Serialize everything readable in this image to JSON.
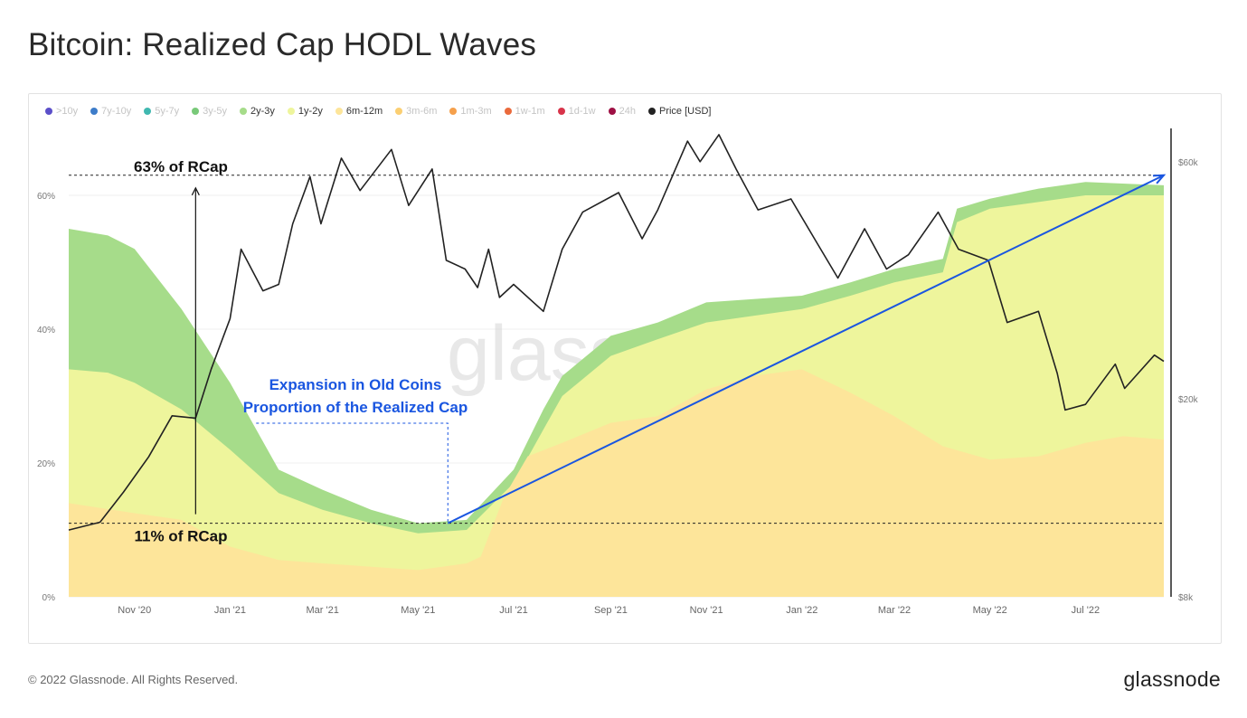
{
  "page": {
    "title": "Bitcoin: Realized Cap HODL Waves",
    "copyright": "© 2022 Glassnode. All Rights Reserved.",
    "brand": "glassnode",
    "watermark": "glassnode"
  },
  "chart_data": {
    "type": "area",
    "title": "Bitcoin: Realized Cap HODL Waves",
    "x_start": "2020-09-20",
    "x_end": "2022-08-20",
    "x_ticks": [
      {
        "label": "Nov '20",
        "date": "2020-11-01"
      },
      {
        "label": "Jan '21",
        "date": "2021-01-01"
      },
      {
        "label": "Mar '21",
        "date": "2021-03-01"
      },
      {
        "label": "May '21",
        "date": "2021-05-01"
      },
      {
        "label": "Jul '21",
        "date": "2021-07-01"
      },
      {
        "label": "Sep '21",
        "date": "2021-09-01"
      },
      {
        "label": "Nov '21",
        "date": "2021-11-01"
      },
      {
        "label": "Jan '22",
        "date": "2022-01-01"
      },
      {
        "label": "Mar '22",
        "date": "2022-03-01"
      },
      {
        "label": "May '22",
        "date": "2022-05-01"
      },
      {
        "label": "Jul '22",
        "date": "2022-07-01"
      }
    ],
    "y_left": {
      "min": 0,
      "max": 70,
      "ticks": [
        {
          "label": "0%",
          "value": 0
        },
        {
          "label": "20%",
          "value": 20
        },
        {
          "label": "40%",
          "value": 40
        },
        {
          "label": "60%",
          "value": 60
        }
      ]
    },
    "y_right": {
      "scale": "log",
      "min": 8000,
      "max": 70000,
      "ticks": [
        {
          "label": "$8k",
          "value": 8000
        },
        {
          "label": "$20k",
          "value": 20000
        },
        {
          "label": "$60k",
          "value": 60000
        }
      ]
    },
    "grid": true,
    "legend_position": "top-left",
    "legend": [
      {
        "label": ">10y",
        "color": "#5b4fc9",
        "active": false
      },
      {
        "label": "7y-10y",
        "color": "#3d7cc9",
        "active": false
      },
      {
        "label": "5y-7y",
        "color": "#40b8b0",
        "active": false
      },
      {
        "label": "3y-5y",
        "color": "#79c979",
        "active": false
      },
      {
        "label": "2y-3y",
        "color": "#a6dc8a",
        "active": true
      },
      {
        "label": "1y-2y",
        "color": "#eef59c",
        "active": true
      },
      {
        "label": "6m-12m",
        "color": "#fde59a",
        "active": true
      },
      {
        "label": "3m-6m",
        "color": "#fbcf72",
        "active": false
      },
      {
        "label": "1m-3m",
        "color": "#f5a04c",
        "active": false
      },
      {
        "label": "1w-1m",
        "color": "#ea6a3c",
        "active": false
      },
      {
        "label": "1d-1w",
        "color": "#d8344a",
        "active": false
      },
      {
        "label": "24h",
        "color": "#9e1044",
        "active": false
      },
      {
        "label": "Price [USD]",
        "color": "#222222",
        "active": true
      }
    ],
    "series": [
      {
        "name": "6m-12m",
        "color": "#fde59a",
        "points": [
          [
            "2020-09-20",
            14
          ],
          [
            "2020-11-01",
            12.5
          ],
          [
            "2020-12-01",
            11.5
          ],
          [
            "2021-01-01",
            7.5
          ],
          [
            "2021-02-01",
            5.5
          ],
          [
            "2021-03-01",
            5
          ],
          [
            "2021-04-01",
            4.5
          ],
          [
            "2021-05-01",
            4
          ],
          [
            "2021-06-01",
            5
          ],
          [
            "2021-06-10",
            6
          ],
          [
            "2021-06-25",
            15
          ],
          [
            "2021-07-10",
            21
          ],
          [
            "2021-08-01",
            23
          ],
          [
            "2021-09-01",
            26
          ],
          [
            "2021-10-01",
            27
          ],
          [
            "2021-11-01",
            31
          ],
          [
            "2021-12-01",
            33
          ],
          [
            "2022-01-01",
            34
          ],
          [
            "2022-02-01",
            30.5
          ],
          [
            "2022-03-01",
            27
          ],
          [
            "2022-04-01",
            22.5
          ],
          [
            "2022-05-01",
            20.5
          ],
          [
            "2022-06-01",
            21
          ],
          [
            "2022-07-01",
            23
          ],
          [
            "2022-07-25",
            24
          ],
          [
            "2022-08-20",
            23.5
          ]
        ]
      },
      {
        "name": "1y-2y",
        "color": "#eef59c",
        "points": [
          [
            "2020-09-20",
            34
          ],
          [
            "2020-10-15",
            33.5
          ],
          [
            "2020-11-01",
            32
          ],
          [
            "2020-12-01",
            28
          ],
          [
            "2021-01-01",
            22
          ],
          [
            "2021-02-01",
            15.5
          ],
          [
            "2021-03-01",
            13
          ],
          [
            "2021-04-01",
            11
          ],
          [
            "2021-05-01",
            9.5
          ],
          [
            "2021-06-01",
            10
          ],
          [
            "2021-07-01",
            17
          ],
          [
            "2021-07-20",
            25
          ],
          [
            "2021-08-01",
            30
          ],
          [
            "2021-09-01",
            36
          ],
          [
            "2021-10-01",
            38.5
          ],
          [
            "2021-11-01",
            41
          ],
          [
            "2021-12-01",
            42
          ],
          [
            "2022-01-01",
            43
          ],
          [
            "2022-02-01",
            45
          ],
          [
            "2022-03-01",
            47
          ],
          [
            "2022-04-01",
            48.5
          ],
          [
            "2022-04-10",
            56
          ],
          [
            "2022-05-01",
            58
          ],
          [
            "2022-06-01",
            59
          ],
          [
            "2022-07-01",
            60
          ],
          [
            "2022-08-20",
            60
          ]
        ]
      },
      {
        "name": "2y-3y",
        "color": "#a6dc8a",
        "points": [
          [
            "2020-09-20",
            55
          ],
          [
            "2020-10-15",
            54
          ],
          [
            "2020-11-01",
            52
          ],
          [
            "2020-12-01",
            43
          ],
          [
            "2021-01-01",
            32
          ],
          [
            "2021-02-01",
            19
          ],
          [
            "2021-03-01",
            16
          ],
          [
            "2021-04-01",
            13
          ],
          [
            "2021-05-01",
            11
          ],
          [
            "2021-06-01",
            11.5
          ],
          [
            "2021-07-01",
            19
          ],
          [
            "2021-07-20",
            28
          ],
          [
            "2021-08-01",
            33
          ],
          [
            "2021-09-01",
            39
          ],
          [
            "2021-10-01",
            41
          ],
          [
            "2021-11-01",
            44
          ],
          [
            "2021-12-01",
            44.5
          ],
          [
            "2022-01-01",
            45
          ],
          [
            "2022-02-01",
            47
          ],
          [
            "2022-03-01",
            49
          ],
          [
            "2022-04-01",
            50.5
          ],
          [
            "2022-04-10",
            58
          ],
          [
            "2022-05-01",
            59.5
          ],
          [
            "2022-06-01",
            61
          ],
          [
            "2022-07-01",
            62
          ],
          [
            "2022-08-20",
            61.5
          ]
        ]
      },
      {
        "name": "Price [USD]",
        "axis": "right",
        "color": "#222222",
        "points": [
          [
            "2020-09-20",
            10900
          ],
          [
            "2020-10-10",
            11300
          ],
          [
            "2020-10-25",
            13000
          ],
          [
            "2020-11-10",
            15300
          ],
          [
            "2020-11-25",
            18500
          ],
          [
            "2020-12-10",
            18300
          ],
          [
            "2020-12-20",
            23000
          ],
          [
            "2021-01-01",
            29000
          ],
          [
            "2021-01-08",
            40000
          ],
          [
            "2021-01-22",
            33000
          ],
          [
            "2021-02-01",
            34000
          ],
          [
            "2021-02-10",
            45000
          ],
          [
            "2021-02-21",
            56000
          ],
          [
            "2021-02-28",
            45000
          ],
          [
            "2021-03-13",
            61000
          ],
          [
            "2021-03-25",
            52500
          ],
          [
            "2021-04-14",
            63500
          ],
          [
            "2021-04-25",
            49000
          ],
          [
            "2021-05-10",
            58000
          ],
          [
            "2021-05-19",
            38000
          ],
          [
            "2021-05-31",
            36500
          ],
          [
            "2021-06-08",
            33500
          ],
          [
            "2021-06-15",
            40000
          ],
          [
            "2021-06-22",
            32000
          ],
          [
            "2021-07-01",
            34000
          ],
          [
            "2021-07-20",
            30000
          ],
          [
            "2021-08-01",
            40000
          ],
          [
            "2021-08-14",
            47500
          ],
          [
            "2021-09-06",
            52000
          ],
          [
            "2021-09-21",
            42000
          ],
          [
            "2021-10-01",
            48000
          ],
          [
            "2021-10-20",
            66000
          ],
          [
            "2021-10-28",
            60000
          ],
          [
            "2021-11-09",
            68000
          ],
          [
            "2021-11-20",
            58000
          ],
          [
            "2021-12-04",
            48000
          ],
          [
            "2021-12-25",
            50500
          ],
          [
            "2022-01-10",
            41500
          ],
          [
            "2022-01-24",
            35000
          ],
          [
            "2022-02-10",
            44000
          ],
          [
            "2022-02-24",
            36500
          ],
          [
            "2022-03-10",
            39000
          ],
          [
            "2022-03-29",
            47500
          ],
          [
            "2022-04-11",
            40000
          ],
          [
            "2022-04-30",
            38000
          ],
          [
            "2022-05-12",
            28500
          ],
          [
            "2022-06-01",
            30000
          ],
          [
            "2022-06-13",
            22500
          ],
          [
            "2022-06-18",
            19000
          ],
          [
            "2022-07-01",
            19500
          ],
          [
            "2022-07-20",
            23500
          ],
          [
            "2022-07-26",
            21000
          ],
          [
            "2022-08-14",
            24500
          ],
          [
            "2022-08-20",
            23800
          ]
        ]
      }
    ],
    "annotations": {
      "top_label": "63% of RCap",
      "top_value": 63,
      "bottom_label": "11% of RCap",
      "bottom_value": 11,
      "expansion_line1": "Expansion in Old Coins",
      "expansion_line2": "Proportion of the Realized Cap",
      "trend_start": [
        "2021-05-20",
        11
      ],
      "trend_end": [
        "2022-08-20",
        63
      ],
      "vertical_arrow_date": "2020-12-10"
    }
  }
}
